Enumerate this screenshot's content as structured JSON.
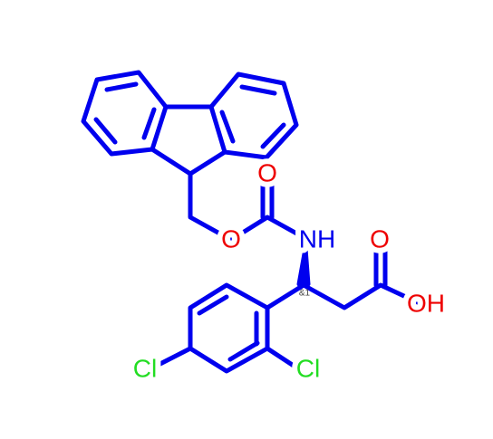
{
  "atoms": [
    "O",
    "O",
    "NH",
    "O",
    "OH",
    "Cl",
    "Cl"
  ],
  "stereo_label": "&1"
}
